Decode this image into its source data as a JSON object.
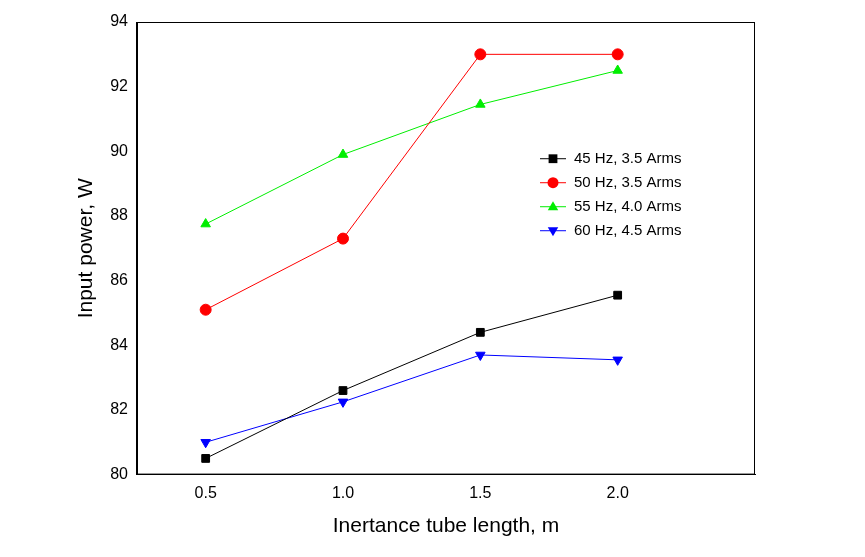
{
  "chart_data": {
    "type": "line",
    "x_label": "Inertance tube length, m",
    "y_label": "Input power, W",
    "xlim": [
      0.25,
      2.5
    ],
    "xticks": [
      0.5,
      {
        "value": 1,
        "label": "1.0"
      },
      1.5,
      {
        "value": 2,
        "label": "2.0"
      }
    ],
    "ylim": [
      80,
      94
    ],
    "yticks": [
      80,
      82,
      84,
      86,
      88,
      90,
      92,
      94
    ],
    "grid": false,
    "legend": "upper right",
    "x": [
      0.5,
      1,
      1.5,
      2
    ],
    "series": [
      {
        "name": "45 Hz, 3.5 Arms",
        "color": "#000000",
        "marker": "square",
        "values": [
          80.5,
          82.6,
          84.4,
          85.55
        ]
      },
      {
        "name": "50 Hz, 3.5 Arms",
        "color": "#ff0000",
        "marker": "circle",
        "values": [
          85.1,
          87.3,
          93.0,
          93.0
        ]
      },
      {
        "name": "55 Hz, 4.0 Arms",
        "color": "#00ee00",
        "marker": "triangle",
        "values": [
          87.75,
          89.9,
          91.45,
          92.5
        ]
      },
      {
        "name": "60 Hz, 4.5 Arms",
        "color": "#0000ff",
        "marker": "triangle_down",
        "values": [
          81.0,
          82.25,
          83.7,
          83.55
        ]
      }
    ]
  }
}
